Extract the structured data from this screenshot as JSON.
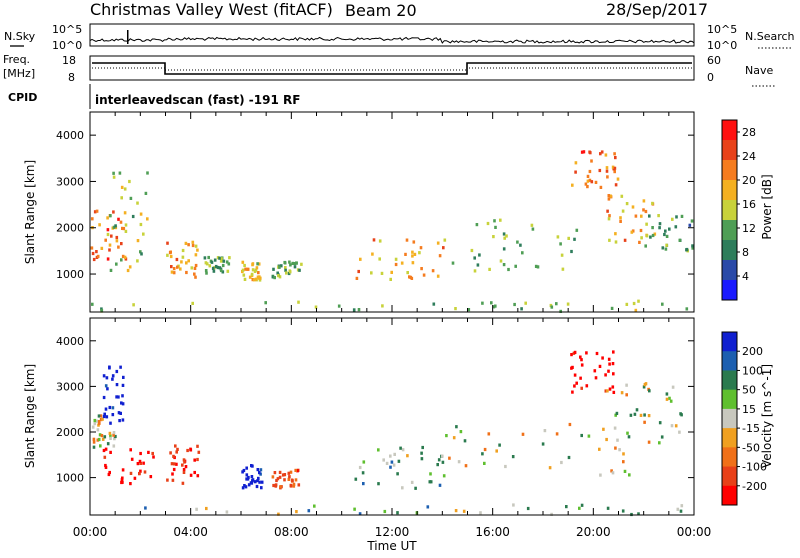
{
  "header": {
    "title": "Christmas Valley West (fitACF)",
    "beam": "Beam 20",
    "date": "28/Sep/2017"
  },
  "summary_panels": {
    "nsky_label": "N.Sky",
    "nsky_ticks": [
      "10^5",
      "10^0"
    ],
    "nsearch_label": "N.Search",
    "nsearch_ticks": [
      "10^5",
      "10^0"
    ],
    "freq_label": "Freq.",
    "freq_unit": "[MHz]",
    "freq_ticks": [
      "18",
      "8"
    ],
    "nave_label": "Nave",
    "nave_ticks": [
      "60",
      "0"
    ],
    "cpid_label": "CPID",
    "cpid_text": "interleavedscan (fast) -191 RF"
  },
  "colors": {
    "power_scale": [
      "#1a1aff",
      "#2a4aa8",
      "#2e7d5b",
      "#4f9e55",
      "#c8d23a",
      "#f4b021",
      "#f57c1f",
      "#e8421a",
      "#ff1010"
    ],
    "velocity_scale": [
      "#1020d0",
      "#1c5fb0",
      "#2a7a4e",
      "#5fbf2f",
      "#c8c8be",
      "#f0a020",
      "#f07018",
      "#e84018",
      "#ff0000"
    ]
  },
  "chart_data": [
    {
      "type": "heatmap",
      "name": "power",
      "xlabel": "",
      "ylabel": "Slant Range [km]",
      "xlim": [
        "00:00",
        "00:00"
      ],
      "x_ticks": [
        "00:00",
        "04:00",
        "08:00",
        "12:00",
        "16:00",
        "20:00",
        "00:00"
      ],
      "y_ticks": [
        1000,
        2000,
        3000,
        4000
      ],
      "ylim": [
        180,
        4500
      ],
      "colorbar_label": "Power [dB]",
      "colorbar_ticks": [
        4,
        8,
        12,
        16,
        20,
        24,
        28
      ],
      "colorbar_range": [
        0,
        30
      ],
      "features": [
        {
          "t0": 0.0,
          "t1": 1.5,
          "r0": 1300,
          "r1": 2400,
          "level": 24
        },
        {
          "t0": 0.5,
          "t1": 2.3,
          "r0": 1100,
          "r1": 3300,
          "level": 14
        },
        {
          "t0": 3.0,
          "t1": 4.3,
          "r0": 900,
          "r1": 1800,
          "level": 20
        },
        {
          "t0": 4.5,
          "t1": 5.5,
          "r0": 1000,
          "r1": 1400,
          "level": 10
        },
        {
          "t0": 6.0,
          "t1": 6.8,
          "r0": 900,
          "r1": 1300,
          "level": 18
        },
        {
          "t0": 7.2,
          "t1": 8.4,
          "r0": 950,
          "r1": 1300,
          "level": 12
        },
        {
          "t0": 10.5,
          "t1": 14.0,
          "r0": 900,
          "r1": 1800,
          "level": 20
        },
        {
          "t0": 14.0,
          "t1": 19.5,
          "r0": 1100,
          "r1": 2300,
          "level": 12
        },
        {
          "t0": 19.0,
          "t1": 21.0,
          "r0": 2900,
          "r1": 3700,
          "level": 24
        },
        {
          "t0": 20.5,
          "t1": 22.5,
          "r0": 1700,
          "r1": 2800,
          "level": 20
        },
        {
          "t0": 22.0,
          "t1": 24.0,
          "r0": 1500,
          "r1": 2300,
          "level": 10
        },
        {
          "t0": 0.0,
          "t1": 24.0,
          "r0": 200,
          "r1": 450,
          "level": 12
        }
      ]
    },
    {
      "type": "heatmap",
      "name": "velocity",
      "xlabel": "Time UT",
      "ylabel": "Slant Range [km]",
      "xlim": [
        "00:00",
        "00:00"
      ],
      "x_ticks": [
        "00:00",
        "04:00",
        "08:00",
        "12:00",
        "16:00",
        "20:00",
        "00:00"
      ],
      "y_ticks": [
        1000,
        2000,
        3000,
        4000
      ],
      "ylim": [
        180,
        4500
      ],
      "colorbar_label": "Velocity [m s^-1]",
      "colorbar_ticks": [
        200,
        100,
        50,
        15,
        -15,
        -50,
        -100,
        -200
      ],
      "colorbar_range": [
        -250,
        250
      ],
      "features": [
        {
          "t0": 0.0,
          "t1": 1.0,
          "r0": 1700,
          "r1": 2400,
          "level": 0
        },
        {
          "t0": 0.5,
          "t1": 1.3,
          "r0": 2200,
          "r1": 3500,
          "level": 200
        },
        {
          "t0": 0.5,
          "t1": 2.5,
          "r0": 900,
          "r1": 1700,
          "level": -200
        },
        {
          "t0": 3.0,
          "t1": 4.3,
          "r0": 900,
          "r1": 1800,
          "level": -150
        },
        {
          "t0": 6.0,
          "t1": 6.8,
          "r0": 800,
          "r1": 1300,
          "level": 200
        },
        {
          "t0": 7.2,
          "t1": 8.4,
          "r0": 800,
          "r1": 1200,
          "level": -100
        },
        {
          "t0": 10.5,
          "t1": 14.0,
          "r0": 800,
          "r1": 1700,
          "level": 40
        },
        {
          "t0": 14.0,
          "t1": 21.5,
          "r0": 1000,
          "r1": 2200,
          "level": 0
        },
        {
          "t0": 19.0,
          "t1": 20.8,
          "r0": 2900,
          "r1": 3800,
          "level": -200
        },
        {
          "t0": 20.5,
          "t1": 23.5,
          "r0": 1700,
          "r1": 3100,
          "level": 0
        },
        {
          "t0": 0.0,
          "t1": 24.0,
          "r0": 200,
          "r1": 450,
          "level": 25
        }
      ]
    }
  ]
}
